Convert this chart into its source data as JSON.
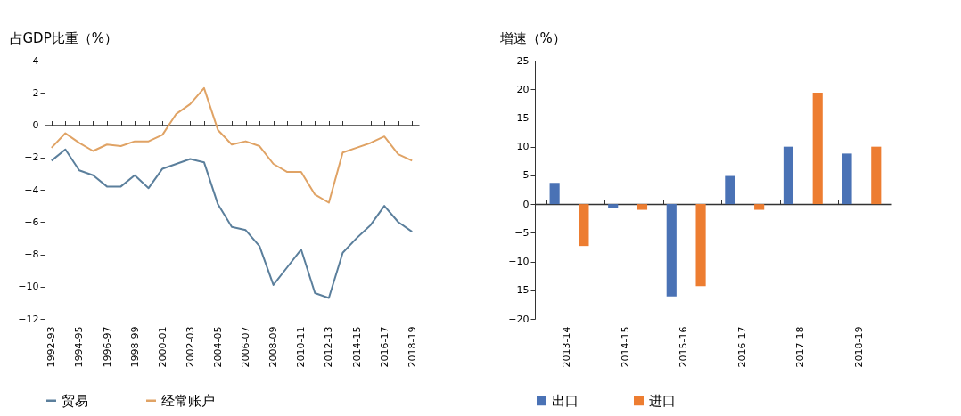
{
  "chart_data": [
    {
      "type": "line",
      "ylabel": "占GDP比重（%）",
      "categories": [
        "1992-93",
        null,
        "1994-95",
        null,
        "1996-97",
        null,
        "1998-99",
        null,
        "2000-01",
        null,
        "2002-03",
        null,
        "2004-05",
        null,
        "2006-07",
        null,
        "2008-09",
        null,
        "2010-11",
        null,
        "2012-13",
        null,
        "2014-15",
        null,
        "2016-17",
        null,
        "2018-19"
      ],
      "series": [
        {
          "name": "贸易",
          "color": "#5b7f9c",
          "values": [
            -2.2,
            -1.5,
            -2.8,
            -3.1,
            -3.8,
            -3.8,
            -3.1,
            -3.9,
            -2.7,
            -2.4,
            -2.1,
            -2.3,
            -4.9,
            -6.3,
            -6.5,
            -7.5,
            -9.9,
            -8.8,
            -7.7,
            -10.4,
            -10.7,
            -7.9,
            -7.0,
            -6.2,
            -5.0,
            -6.0,
            -6.6
          ]
        },
        {
          "name": "经常账户",
          "color": "#e0a365",
          "values": [
            -1.4,
            -0.5,
            -1.1,
            -1.6,
            -1.2,
            -1.3,
            -1.0,
            -1.0,
            -0.6,
            0.7,
            1.3,
            2.3,
            -0.3,
            -1.2,
            -1.0,
            -1.3,
            -2.4,
            -2.9,
            -2.9,
            -4.3,
            -4.8,
            -1.7,
            -1.4,
            -1.1,
            -0.7,
            -1.8,
            -2.2
          ]
        }
      ],
      "ylim": [
        -12,
        4
      ],
      "yticks": [
        -12,
        -10,
        -8,
        -6,
        -4,
        -2,
        0,
        2,
        4
      ],
      "legend": "bottom"
    },
    {
      "type": "bar",
      "ylabel": "增速（%）",
      "categories": [
        "2013-14",
        "2014-15",
        "2015-16",
        "2016-17",
        "2017-18",
        "2018-19"
      ],
      "series": [
        {
          "name": "出口",
          "color": "#4a72b5",
          "values": [
            3.7,
            -0.7,
            -16.1,
            4.9,
            10.0,
            8.8
          ]
        },
        {
          "name": "进口",
          "color": "#ed7d31",
          "values": [
            -7.3,
            -1.0,
            -14.3,
            -1.0,
            19.4,
            10.0
          ]
        }
      ],
      "ylim": [
        -20,
        25
      ],
      "yticks": [
        -20,
        -15,
        -10,
        -5,
        0,
        5,
        10,
        15,
        20,
        25
      ],
      "legend": "bottom"
    }
  ]
}
